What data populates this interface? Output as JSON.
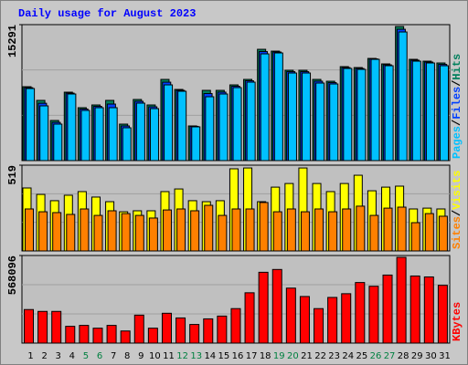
{
  "chart_data": {
    "type": "bar",
    "title": "Daily usage for August 2023",
    "title_color": "#0000ff",
    "categories": [
      "1",
      "2",
      "3",
      "4",
      "5",
      "6",
      "7",
      "8",
      "9",
      "10",
      "11",
      "12",
      "13",
      "14",
      "15",
      "16",
      "17",
      "18",
      "19",
      "20",
      "21",
      "22",
      "23",
      "24",
      "25",
      "26",
      "27",
      "28",
      "29",
      "30",
      "31"
    ],
    "category_colors": [
      "#000000",
      "#000000",
      "#000000",
      "#000000",
      "#008040",
      "#008040",
      "#000000",
      "#000000",
      "#000000",
      "#000000",
      "#000000",
      "#008040",
      "#008040",
      "#000000",
      "#000000",
      "#000000",
      "#000000",
      "#000000",
      "#008040",
      "#008040",
      "#000000",
      "#000000",
      "#000000",
      "#000000",
      "#000000",
      "#008040",
      "#008040",
      "#000000",
      "#000000",
      "#000000",
      "#000000"
    ],
    "separator": "/",
    "grid": true,
    "panels": [
      {
        "ylim": [
          0,
          15291
        ],
        "yticks": [
          15291
        ],
        "series": [
          {
            "name": "Hits",
            "color": "#00805c",
            "values": [
              8311,
              6772,
              4514,
              7695,
              5951,
              6259,
              6772,
              4104,
              6874,
              6259,
              9131,
              8003,
              3899,
              7900,
              7900,
              8516,
              9131,
              12517,
              12312,
              10157,
              10157,
              9131,
              8926,
              10568,
              10465,
              11491,
              10876,
              15082,
              11389,
              11183,
              10978
            ]
          },
          {
            "name": "Files",
            "color": "#0040ff",
            "values": [
              8200,
              6450,
              4300,
              7590,
              5800,
              6100,
              6360,
              3900,
              6670,
              6050,
              8820,
              7900,
              3850,
              7540,
              7700,
              8360,
              8980,
              12260,
              12210,
              10000,
              10000,
              8930,
              8770,
              10460,
              10360,
              11440,
              10770,
              14770,
              11290,
              11080,
              10820
            ]
          },
          {
            "name": "Pages",
            "color": "#00c0ff",
            "values": [
              8105,
              6156,
              4104,
              7490,
              5643,
              5951,
              5951,
              3694,
              6464,
              5848,
              8516,
              7798,
              3796,
              7182,
              7490,
              8208,
              8824,
              12004,
              12107,
              9850,
              9850,
              8721,
              8618,
              10363,
              10260,
              11389,
              10670,
              14467,
              11183,
              10978,
              10670
            ]
          }
        ]
      },
      {
        "ylim": [
          0,
          519
        ],
        "yticks": [
          519
        ],
        "series": [
          {
            "name": "Visits",
            "color": "#ffff00",
            "values": [
              381,
              342,
              304,
              337,
              359,
              326,
              298,
              237,
              243,
              243,
              359,
              375,
              304,
              298,
              304,
              497,
              502,
              298,
              386,
              408,
              502,
              408,
              359,
              408,
              458,
              364,
              386,
              392,
              254,
              259,
              254
            ]
          },
          {
            "name": "Sites",
            "color": "#ff8000",
            "values": [
              254,
              237,
              232,
              221,
              254,
              215,
              243,
              226,
              215,
              199,
              248,
              254,
              243,
              276,
              215,
              254,
              254,
              293,
              237,
              254,
              237,
              254,
              237,
              254,
              271,
              215,
              259,
              265,
              171,
              226,
              210
            ]
          }
        ]
      },
      {
        "ylim": [
          0,
          568096
        ],
        "yticks": [
          568096
        ],
        "series": [
          {
            "name": "KBytes",
            "color": "#ff0000",
            "values": [
              217584,
              205496,
              205496,
              108792,
              114836,
              96704,
              114836,
              78572,
              181320,
              96704,
              193408,
              163188,
              120880,
              157144,
              175276,
              223628,
              326376,
              459344,
              477476,
              356596,
              302200,
              223628,
              296156,
              320332,
              392860,
              368684,
              441212,
              556048,
              435168,
              429124,
              374728
            ]
          }
        ]
      }
    ]
  }
}
